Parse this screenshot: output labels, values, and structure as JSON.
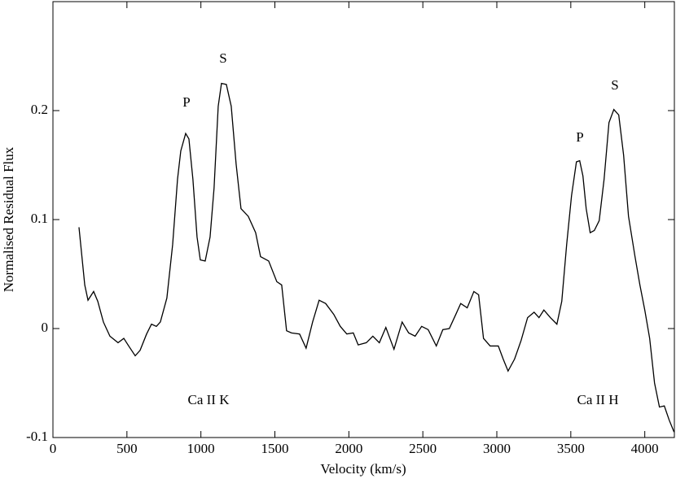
{
  "chart_data": {
    "type": "line",
    "xlabel": "Velocity (km/s)",
    "ylabel": "Normalised Residual Flux",
    "xlim": [
      0,
      4200
    ],
    "ylim": [
      -0.1,
      0.3
    ],
    "xticks": [
      0,
      500,
      1000,
      1500,
      2000,
      2500,
      3000,
      3500,
      4000
    ],
    "yticks": [
      -0.1,
      0,
      0.1,
      0.2
    ],
    "annotations": [
      "P",
      "S",
      "P",
      "S",
      "Ca II K",
      "Ca II H"
    ],
    "series": [
      {
        "color": "#000000",
        "x": [
          176,
          215,
          237,
          275,
          303,
          341,
          385,
          440,
          479,
          512,
          556,
          589,
          633,
          666,
          699,
          726,
          770,
          809,
          842,
          864,
          897,
          919,
          946,
          974,
          996,
          1029,
          1062,
          1089,
          1117,
          1139,
          1172,
          1205,
          1238,
          1271,
          1320,
          1370,
          1403,
          1458,
          1513,
          1546,
          1579,
          1612,
          1667,
          1711,
          1755,
          1799,
          1843,
          1898,
          1942,
          1986,
          2030,
          2063,
          2118,
          2162,
          2206,
          2250,
          2305,
          2360,
          2404,
          2448,
          2492,
          2536,
          2591,
          2635,
          2679,
          2723,
          2756,
          2800,
          2845,
          2877,
          2910,
          2955,
          3010,
          3043,
          3076,
          3120,
          3164,
          3208,
          3252,
          3285,
          3318,
          3362,
          3406,
          3439,
          3472,
          3505,
          3538,
          3560,
          3582,
          3604,
          3631,
          3659,
          3692,
          3725,
          3758,
          3791,
          3824,
          3857,
          3890,
          3934,
          3967,
          4000,
          4033,
          4066,
          4099,
          4132,
          4165,
          4198
        ],
        "values": [
          0.093,
          0.04,
          0.026,
          0.034,
          0.025,
          0.006,
          -0.007,
          -0.013,
          -0.009,
          -0.016,
          -0.025,
          -0.02,
          -0.005,
          0.004,
          0.002,
          0.006,
          0.028,
          0.077,
          0.137,
          0.163,
          0.179,
          0.174,
          0.137,
          0.084,
          0.063,
          0.062,
          0.084,
          0.129,
          0.204,
          0.225,
          0.224,
          0.204,
          0.151,
          0.11,
          0.103,
          0.088,
          0.066,
          0.062,
          0.043,
          0.04,
          -0.002,
          -0.004,
          -0.005,
          -0.018,
          0.006,
          0.026,
          0.023,
          0.013,
          0.002,
          -0.005,
          -0.004,
          -0.015,
          -0.013,
          -0.007,
          -0.013,
          0.001,
          -0.019,
          0.006,
          -0.004,
          -0.007,
          0.002,
          -0.001,
          -0.016,
          -0.001,
          0.0,
          0.013,
          0.023,
          0.019,
          0.034,
          0.031,
          -0.009,
          -0.016,
          -0.016,
          -0.028,
          -0.039,
          -0.028,
          -0.011,
          0.01,
          0.015,
          0.01,
          0.017,
          0.01,
          0.004,
          0.025,
          0.077,
          0.122,
          0.153,
          0.154,
          0.14,
          0.11,
          0.088,
          0.09,
          0.099,
          0.137,
          0.189,
          0.201,
          0.196,
          0.159,
          0.103,
          0.066,
          0.04,
          0.017,
          -0.009,
          -0.05,
          -0.072,
          -0.071,
          -0.084,
          -0.095
        ]
      }
    ]
  }
}
